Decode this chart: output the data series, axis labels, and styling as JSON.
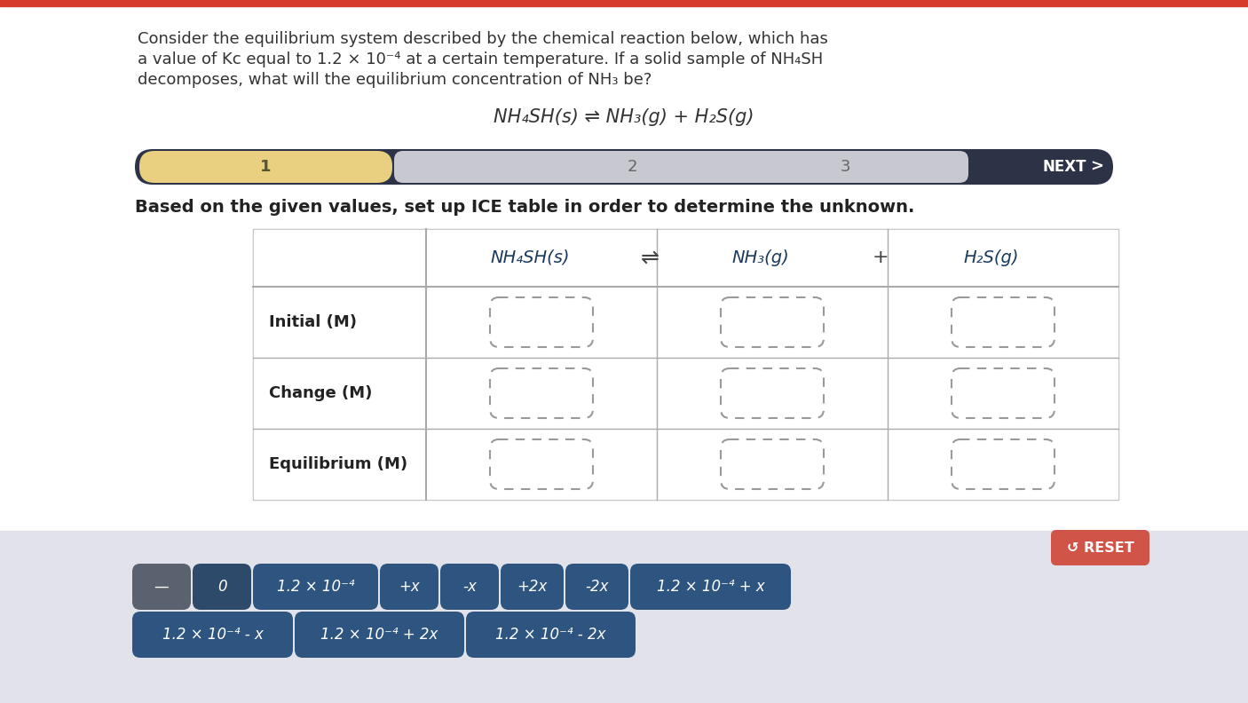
{
  "bg_top": "#ffffff",
  "bg_bottom": "#e2e2ea",
  "red_bar_color": "#d63a2a",
  "red_bar_height": 7,
  "question_text_line1": "Consider the equilibrium system described by the chemical reaction below, which has",
  "question_text_line2": "a value of Kc equal to 1.2 × 10⁻⁴ at a certain temperature. If a solid sample of NH₄SH",
  "question_text_line3": "decomposes, what will the equilibrium concentration of NH₃ be?",
  "equation_text": "NH₄SH(s) ⇌ NH₃(g) + H₂S(g)",
  "nav_bg": "#2c3347",
  "nav_highlight_color": "#e8d080",
  "nav_gray": "#d0d0d8",
  "instruction_text": "Based on the given values, set up ICE table in order to determine the unknown.",
  "table_header_col1": "NH₄SH(s)",
  "table_header_eq": "⇌",
  "table_header_col2": "NH₃(g)",
  "table_header_plus": "+",
  "table_header_col3": "H₂S(g)",
  "table_row_labels": [
    "Initial (M)",
    "Change (M)",
    "Equilibrium (M)"
  ],
  "reset_btn_color": "#d05548",
  "reset_btn_text": "↺ RESET",
  "chip_dark_gray": "#5a6270",
  "chip_dark_blue": "#2e4a6a",
  "chip_blue": "#2e5580",
  "answer_chips_row1": [
    {
      "text": "—",
      "bg": "#5a6270"
    },
    {
      "text": "0",
      "bg": "#2e4a6a"
    },
    {
      "text": "1.2 × 10⁻⁴",
      "bg": "#2e5580"
    },
    {
      "text": "+x",
      "bg": "#2e5580"
    },
    {
      "text": "-x",
      "bg": "#2e5580"
    },
    {
      "text": "+2x",
      "bg": "#2e5580"
    },
    {
      "text": "-2x",
      "bg": "#2e5580"
    },
    {
      "text": "1.2 × 10⁻⁴ + x",
      "bg": "#2e5580"
    }
  ],
  "answer_chips_row2": [
    {
      "text": "1.2 × 10⁻⁴ - x",
      "bg": "#2e5580"
    },
    {
      "text": "1.2 × 10⁻⁴ + 2x",
      "bg": "#2e5580"
    },
    {
      "text": "1.2 × 10⁻⁴ - 2x",
      "bg": "#2e5580"
    }
  ]
}
